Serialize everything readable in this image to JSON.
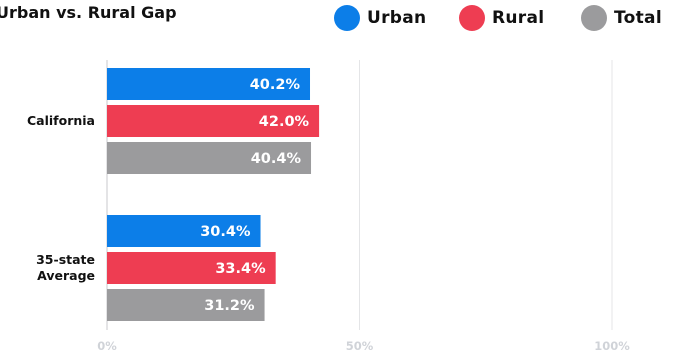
{
  "chart_data": {
    "type": "bar",
    "orientation": "horizontal",
    "title": "Urban vs. Rural Gap",
    "categories": [
      "California",
      "35-state\nAverage"
    ],
    "series": [
      {
        "name": "Urban",
        "color": "#0c7ee8",
        "values": [
          40.2,
          30.4
        ],
        "labels": [
          "40.2%",
          "30.4%"
        ]
      },
      {
        "name": "Rural",
        "color": "#ee3d52",
        "values": [
          42.0,
          33.4
        ],
        "labels": [
          "42.0%",
          "33.4%"
        ]
      },
      {
        "name": "Total",
        "color": "#9b9b9d",
        "values": [
          40.4,
          31.2
        ],
        "labels": [
          "40.4%",
          "31.2%"
        ]
      }
    ],
    "xlim": [
      0,
      100
    ],
    "ticks": [
      0,
      50,
      100
    ],
    "tick_labels": [
      "0%",
      "50%",
      "100%"
    ],
    "grid": true,
    "legend_position": "top-right"
  }
}
